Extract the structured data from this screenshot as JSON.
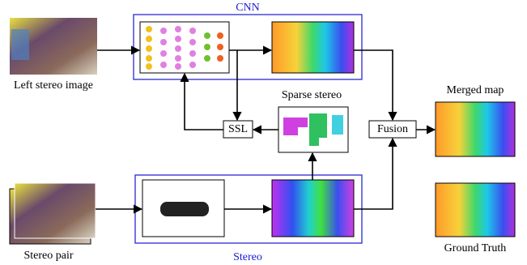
{
  "cnn_label": "CNN",
  "left_image_label": "Left stereo image",
  "sparse_label": "Sparse stereo",
  "merged_label": "Merged map",
  "ssl_label": "SSL",
  "fusion_label": "Fusion",
  "stereo_pair_label": "Stereo pair",
  "stereo_label": "Stereo",
  "ground_truth_label": "Ground Truth"
}
